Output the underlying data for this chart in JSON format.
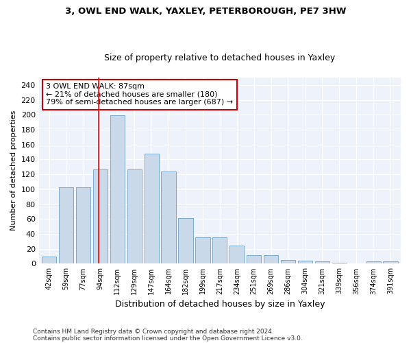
{
  "title1": "3, OWL END WALK, YAXLEY, PETERBOROUGH, PE7 3HW",
  "title2": "Size of property relative to detached houses in Yaxley",
  "xlabel": "Distribution of detached houses by size in Yaxley",
  "ylabel": "Number of detached properties",
  "categories": [
    "42sqm",
    "59sqm",
    "77sqm",
    "94sqm",
    "112sqm",
    "129sqm",
    "147sqm",
    "164sqm",
    "182sqm",
    "199sqm",
    "217sqm",
    "234sqm",
    "251sqm",
    "269sqm",
    "286sqm",
    "304sqm",
    "321sqm",
    "339sqm",
    "356sqm",
    "374sqm",
    "391sqm"
  ],
  "values": [
    10,
    103,
    103,
    127,
    199,
    127,
    148,
    124,
    61,
    35,
    35,
    24,
    11,
    11,
    5,
    4,
    3,
    1,
    0,
    3,
    3
  ],
  "bar_color": "#c9d9ea",
  "bar_edge_color": "#7aaacc",
  "annotation_text": "3 OWL END WALK: 87sqm\n← 21% of detached houses are smaller (180)\n79% of semi-detached houses are larger (687) →",
  "annotation_box_color": "#ffffff",
  "annotation_box_edge": "#cc0000",
  "footer1": "Contains HM Land Registry data © Crown copyright and database right 2024.",
  "footer2": "Contains public sector information licensed under the Open Government Licence v3.0.",
  "background_color": "#eef2fb",
  "ylim": [
    0,
    250
  ],
  "yticks": [
    0,
    20,
    40,
    60,
    80,
    100,
    120,
    140,
    160,
    180,
    200,
    220,
    240
  ],
  "title1_fontsize": 9.5,
  "title2_fontsize": 9,
  "ylabel_fontsize": 8,
  "xlabel_fontsize": 9,
  "tick_fontsize": 7,
  "ytick_fontsize": 8,
  "ann_fontsize": 8,
  "footer_fontsize": 6.5
}
